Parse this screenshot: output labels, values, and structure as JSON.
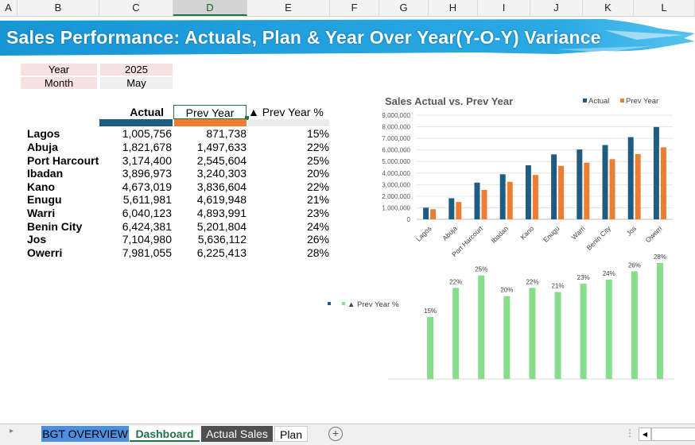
{
  "columns": [
    "A",
    "B",
    "C",
    "D",
    "E",
    "F",
    "G",
    "H",
    "I",
    "J",
    "K",
    "L"
  ],
  "title": "Sales Performance: Actuals, Plan & Year Over Year(Y-O-Y) Variance",
  "filters": {
    "year_label": "Year",
    "year_value": "2025",
    "month_label": "Month",
    "month_value": "May"
  },
  "table": {
    "headers": {
      "actual": "Actual",
      "prev": "Prev Year",
      "pct": "▲ Prev Year %"
    },
    "rows": [
      {
        "city": "Lagos",
        "actual": "1,005,756",
        "prev": "871,738",
        "pct": "15%"
      },
      {
        "city": "Abuja",
        "actual": "1,821,678",
        "prev": "1,497,633",
        "pct": "22%"
      },
      {
        "city": "Port Harcourt",
        "actual": "3,174,400",
        "prev": "2,545,604",
        "pct": "25%"
      },
      {
        "city": "Ibadan",
        "actual": "3,896,973",
        "prev": "3,240,303",
        "pct": "20%"
      },
      {
        "city": "Kano",
        "actual": "4,673,019",
        "prev": "3,836,604",
        "pct": "22%"
      },
      {
        "city": "Enugu",
        "actual": "5,611,981",
        "prev": "4,619,948",
        "pct": "21%"
      },
      {
        "city": "Warri",
        "actual": "6,040,123",
        "prev": "4,893,991",
        "pct": "23%"
      },
      {
        "city": "Benin City",
        "actual": "6,424,381",
        "prev": "5,201,804",
        "pct": "24%"
      },
      {
        "city": "Jos",
        "actual": "7,104,980",
        "prev": "5,636,112",
        "pct": "26%"
      },
      {
        "city": "Owerri",
        "actual": "7,981,055",
        "prev": "6,225,413",
        "pct": "28%"
      }
    ]
  },
  "chart_data": [
    {
      "type": "bar",
      "title": "Sales Actual vs. Prev Year",
      "categories": [
        "Lagos",
        "Abuja",
        "Port Harcourt",
        "Ibadan",
        "Kano",
        "Enugu",
        "Warri",
        "Benin City",
        "Jos",
        "Owerri"
      ],
      "series": [
        {
          "name": "Actual",
          "color": "#1f5c7f",
          "values": [
            1005756,
            1821678,
            3174400,
            3896973,
            4673019,
            5611981,
            6040123,
            6424381,
            7104980,
            7981055
          ]
        },
        {
          "name": "Prev Year",
          "color": "#ed7d31",
          "values": [
            871738,
            1497633,
            2545604,
            3240303,
            3836604,
            4619948,
            4893991,
            5201804,
            5636112,
            6225413
          ]
        }
      ],
      "yticks": [
        "9,000,000",
        "8,000,000",
        "7,000,000",
        "6,000,000",
        "5,000,000",
        "4,000,000",
        "3,000,000",
        "2,000,000",
        "1,000,000",
        "0"
      ],
      "ylim": [
        0,
        9000000
      ],
      "legend": "top-right",
      "grid": true
    },
    {
      "type": "bar",
      "series": [
        {
          "name": "▲ Prev Year %",
          "color": "#86dd8a",
          "values": [
            15,
            22,
            25,
            20,
            22,
            21,
            23,
            24,
            26,
            28
          ]
        }
      ],
      "data_labels": [
        "15%",
        "22%",
        "25%",
        "20%",
        "22%",
        "21%",
        "23%",
        "24%",
        "26%",
        "28%"
      ],
      "legend": "left"
    }
  ],
  "sheet_tabs": [
    {
      "label": "BGT OVERVIEW"
    },
    {
      "label": "Dashboard"
    },
    {
      "label": "Actual Sales"
    },
    {
      "label": "Plan"
    }
  ],
  "colors": {
    "accent": "#217346",
    "banner": "#1aa0dc",
    "bgt_tab": "#4d8ede",
    "actual_tab": "#4f4f4f"
  }
}
